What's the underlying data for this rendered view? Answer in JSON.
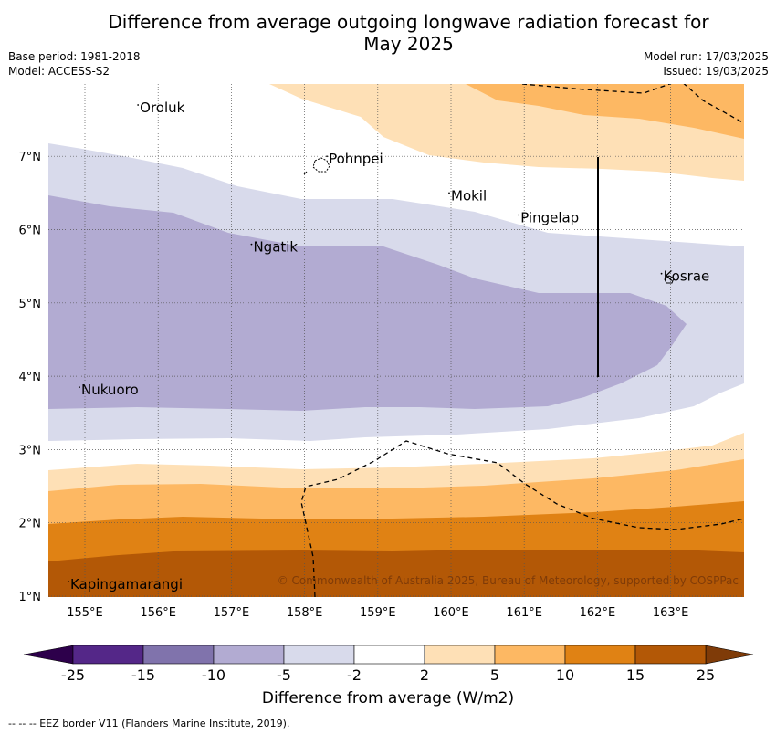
{
  "title_line1": "Difference from average outgoing longwave radiation forecast for",
  "title_line2": "May 2025",
  "meta_left": [
    "Base period: 1981-2018",
    "Model: ACCESS-S2"
  ],
  "meta_right": [
    "Model run: 17/03/2025",
    "Issued: 19/03/2025"
  ],
  "x_ticks": [
    "155°E",
    "156°E",
    "157°E",
    "158°E",
    "159°E",
    "160°E",
    "161°E",
    "162°E",
    "163°E"
  ],
  "y_ticks": [
    "1°N",
    "2°N",
    "3°N",
    "4°N",
    "5°N",
    "6°N",
    "7°N"
  ],
  "places": [
    {
      "name": "Oroluk",
      "lon": 155.75,
      "lat": 7.6
    },
    {
      "name": "Pohnpei",
      "lon": 158.33,
      "lat": 6.9
    },
    {
      "name": "Mokil",
      "lon": 160.0,
      "lat": 6.4
    },
    {
      "name": "Pingelap",
      "lon": 160.95,
      "lat": 6.1
    },
    {
      "name": "Ngatik",
      "lon": 157.3,
      "lat": 5.7
    },
    {
      "name": "Kosrae",
      "lon": 162.9,
      "lat": 5.3
    },
    {
      "name": "Nukuoro",
      "lon": 154.95,
      "lat": 3.75
    },
    {
      "name": "Kapingamarangi",
      "lon": 154.8,
      "lat": 1.1
    }
  ],
  "copyright": "© Commonwealth of Australia 2025, Bureau of Meteorology, supported by COSPPac",
  "colorbar": {
    "labels": [
      "-25",
      "-15",
      "-10",
      "-5",
      "-2",
      "2",
      "5",
      "10",
      "15",
      "25"
    ],
    "colors": [
      "#542788",
      "#8073ac",
      "#b2abd2",
      "#d8daeb",
      "#ffffff",
      "#fee0b6",
      "#fdb863",
      "#e08214",
      "#b35806"
    ],
    "extend_low": "#2d004b",
    "extend_high": "#7f3b08",
    "title": "Difference from average (W/m2)"
  },
  "legend_note": "-- -- -- EEZ border V11 (Flanders Marine Institute, 2019)."
}
